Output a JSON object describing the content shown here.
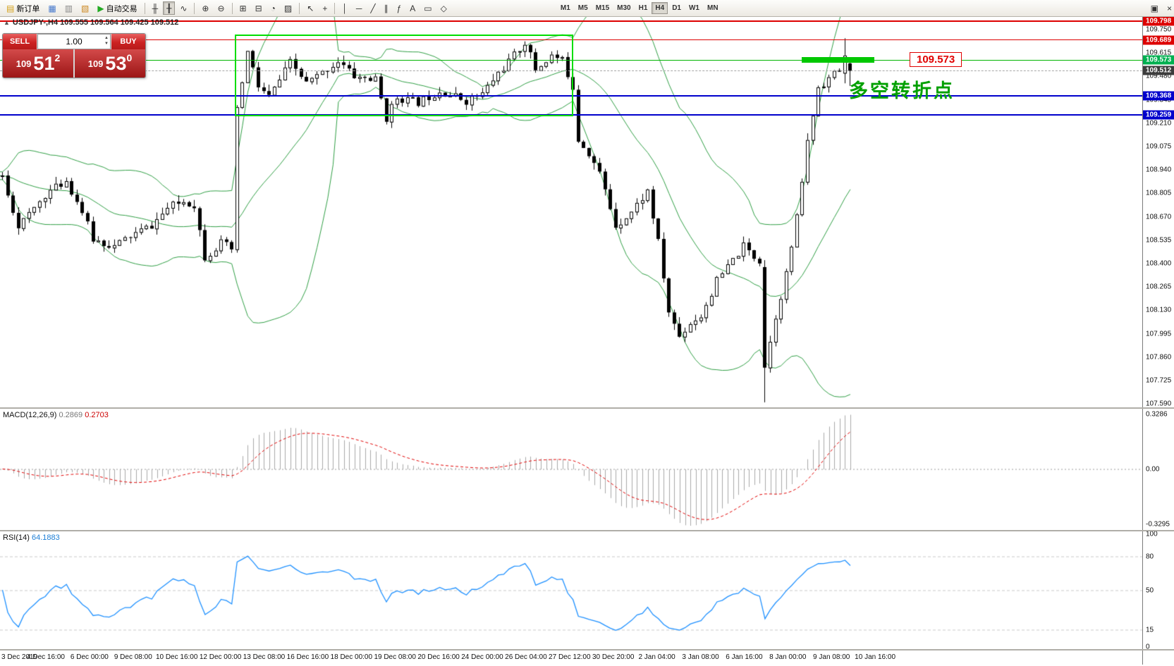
{
  "colors": {
    "band_green": "#2f9e44",
    "hline_red": "#dd0000",
    "hline_blue": "#0000cc",
    "hline_green": "#00b400",
    "current_price_tag": "#3c3c3c",
    "macd_histogram": "#a8a8a8",
    "macd_signal": "#e00000",
    "rsi_line": "#1e90ff",
    "annotation_green": "#00a000",
    "sell_buy_red": "#b81b1b"
  },
  "toolbar": {
    "new_order": "新订单",
    "autotrading": "自动交易",
    "timeframes": [
      "M1",
      "M5",
      "M15",
      "M30",
      "H1",
      "H4",
      "D1",
      "W1",
      "MN"
    ],
    "active_timeframe": "H4",
    "items": [
      {
        "type": "button",
        "name": "new-order-button",
        "icon": "new-order-icon",
        "glyph": "▤",
        "accent": "#d4a017",
        "label_key": "new_order"
      },
      {
        "type": "button",
        "name": "market-watch-button",
        "icon": "market-watch-icon",
        "glyph": "▦",
        "accent": "#4477cc"
      },
      {
        "type": "button",
        "name": "data-window-button",
        "icon": "data-window-icon",
        "glyph": "▥",
        "accent": "#888888"
      },
      {
        "type": "button",
        "name": "navigator-button",
        "icon": "navigator-icon",
        "glyph": "▧",
        "accent": "#cc8822"
      },
      {
        "type": "button",
        "name": "autotrading-button",
        "icon": "autotrading-icon",
        "glyph": "▶",
        "accent": "#22aa22",
        "label_key": "autotrading"
      },
      {
        "type": "sep"
      },
      {
        "type": "button",
        "name": "bar-chart-button",
        "icon": "bar-chart-icon",
        "glyph": "╫"
      },
      {
        "type": "button",
        "name": "candlestick-chart-button",
        "icon": "candlestick-icon",
        "glyph": "╂",
        "active": true
      },
      {
        "type": "button",
        "name": "line-chart-button",
        "icon": "line-chart-icon",
        "glyph": "∿"
      },
      {
        "type": "sep"
      },
      {
        "type": "button",
        "name": "zoom-in-button",
        "icon": "zoom-in-icon",
        "glyph": "⊕"
      },
      {
        "type": "button",
        "name": "zoom-out-button",
        "icon": "zoom-out-icon",
        "glyph": "⊖"
      },
      {
        "type": "sep"
      },
      {
        "type": "button",
        "name": "new-chart-button",
        "icon": "new-chart-icon",
        "glyph": "⊞"
      },
      {
        "type": "button",
        "name": "tile-windows-button",
        "icon": "tile-windows-icon",
        "glyph": "⊟"
      },
      {
        "type": "button",
        "name": "period-dropdown-button",
        "icon": "clock-icon",
        "glyph": "◔"
      },
      {
        "type": "button",
        "name": "templates-button",
        "icon": "template-icon",
        "glyph": "▨"
      },
      {
        "type": "sep"
      },
      {
        "type": "button",
        "name": "cursor-button",
        "icon": "cursor-icon",
        "glyph": "↖"
      },
      {
        "type": "button",
        "name": "crosshair-button",
        "icon": "crosshair-icon",
        "glyph": "+"
      },
      {
        "type": "sep"
      },
      {
        "type": "button",
        "name": "vertical-line-button",
        "icon": "vertical-line-icon",
        "glyph": "│"
      },
      {
        "type": "button",
        "name": "horizontal-line-button",
        "icon": "horizontal-line-icon",
        "glyph": "─"
      },
      {
        "type": "button",
        "name": "trendline-button",
        "icon": "trendline-icon",
        "glyph": "╱"
      },
      {
        "type": "button",
        "name": "channel-button",
        "icon": "channel-icon",
        "glyph": "∥"
      },
      {
        "type": "button",
        "name": "fibonacci-button",
        "icon": "fibonacci-icon",
        "glyph": "ƒ"
      },
      {
        "type": "button",
        "name": "text-button",
        "icon": "text-icon",
        "glyph": "A"
      },
      {
        "type": "button",
        "name": "arrow-label-button",
        "icon": "label-icon",
        "glyph": "▭"
      },
      {
        "type": "button",
        "name": "shapes-button",
        "icon": "shapes-icon",
        "glyph": "◇"
      },
      {
        "type": "gap"
      },
      {
        "type": "timeframes"
      },
      {
        "type": "spacer"
      },
      {
        "type": "button",
        "name": "window-restore-button",
        "icon": "window-restore-icon",
        "glyph": "▣"
      },
      {
        "type": "button",
        "name": "window-close-button",
        "icon": "close-icon",
        "glyph": "×"
      }
    ]
  },
  "chart": {
    "title": "USDJPY-,H4 109.555 109.564 109.425 109.512",
    "symbol": "USDJPY-",
    "period": "H4"
  },
  "one_click": {
    "sell_label": "SELL",
    "buy_label": "BUY",
    "volume": "1.00",
    "spin_up": "▲",
    "spin_down": "▼",
    "sell_price": {
      "prefix": "109",
      "big": "51",
      "sup": "2"
    },
    "buy_price": {
      "prefix": "109",
      "big": "53",
      "sup": "0"
    }
  },
  "annotations": {
    "price_label": "109.573",
    "cn_note": "多空转折点"
  },
  "hlines": [
    {
      "price": 109.798,
      "color": "#dd0000",
      "width": 2,
      "style": "solid"
    },
    {
      "price": 109.689,
      "color": "#dd0000",
      "width": 1,
      "style": "solid"
    },
    {
      "price": 109.573,
      "color": "#00b400",
      "width": 1,
      "style": "solid"
    },
    {
      "price": 109.512,
      "color": "#a8a8a8",
      "width": 1,
      "style": "dashed"
    },
    {
      "price": 109.368,
      "color": "#0000cc",
      "width": 2,
      "style": "solid"
    },
    {
      "price": 109.259,
      "color": "#0000cc",
      "width": 2,
      "style": "solid"
    }
  ],
  "price_scale": {
    "labels": [
      "109.750",
      "109.615",
      "109.480",
      "109.345",
      "109.210",
      "109.075",
      "108.940",
      "108.805",
      "108.670",
      "108.535",
      "108.400",
      "108.265",
      "108.130",
      "107.995",
      "107.860",
      "107.725",
      "107.590"
    ],
    "tags": [
      {
        "text": "109.798",
        "color": "#dd0000",
        "price": 109.798
      },
      {
        "text": "109.689",
        "color": "#dd0000",
        "price": 109.689
      },
      {
        "text": "109.573",
        "color": "#00b050",
        "price": 109.573
      },
      {
        "text": "109.512",
        "color": "#3c3c3c",
        "price": 109.512
      },
      {
        "text": "109.368",
        "color": "#0000cc",
        "price": 109.368
      },
      {
        "text": "109.259",
        "color": "#0000cc",
        "price": 109.259
      }
    ]
  },
  "macd": {
    "name": "MACD(12,26,9)",
    "value_main": "0.2869",
    "value_signal": "0.2703",
    "scale": [
      "0.3286",
      "0.00",
      "-0.3295"
    ]
  },
  "rsi": {
    "name": "RSI(14)",
    "value": "64.1883",
    "scale": [
      "100",
      "80",
      "50",
      "15",
      "0"
    ]
  },
  "time_axis": [
    "3 Dec 2019",
    "4 Dec 16:00",
    "6 Dec 00:00",
    "9 Dec 08:00",
    "10 Dec 16:00",
    "12 Dec 00:00",
    "13 Dec 08:00",
    "16 Dec 16:00",
    "18 Dec 00:00",
    "19 Dec 08:00",
    "20 Dec 16:00",
    "24 Dec 00:00",
    "26 Dec 04:00",
    "27 Dec 12:00",
    "30 Dec 20:00",
    "2 Jan 04:00",
    "3 Jan 08:00",
    "6 Jan 16:00",
    "8 Jan 00:00",
    "9 Jan 08:00",
    "10 Jan 16:00"
  ],
  "chart_data": {
    "type": "candlestick",
    "symbol": "USDJPY",
    "timeframe": "H4",
    "visible_range": {
      "from": "3 Dec 2019",
      "to": "10 Jan 16:00"
    },
    "price_max": 109.827,
    "price_min": 107.571,
    "candle_count": 160,
    "warmup": 40,
    "spacing": 7.5625,
    "body_width": 5,
    "seed": 11,
    "current_ohlc": {
      "open": 109.555,
      "high": 109.564,
      "low": 109.425,
      "close": 109.512
    },
    "anchors": [
      [
        0,
        108.9
      ],
      [
        3,
        108.62
      ],
      [
        5,
        108.68
      ],
      [
        8,
        108.8
      ],
      [
        12,
        108.88
      ],
      [
        15,
        108.7
      ],
      [
        17,
        108.54
      ],
      [
        21,
        108.5
      ],
      [
        24,
        108.56
      ],
      [
        28,
        108.62
      ],
      [
        31,
        108.72
      ],
      [
        34,
        108.76
      ],
      [
        36,
        108.74
      ],
      [
        38,
        108.44
      ],
      [
        41,
        108.52
      ],
      [
        43,
        108.48
      ],
      [
        44,
        109.28
      ],
      [
        46,
        109.62
      ],
      [
        48,
        109.42
      ],
      [
        50,
        109.36
      ],
      [
        54,
        109.56
      ],
      [
        57,
        109.44
      ],
      [
        60,
        109.5
      ],
      [
        63,
        109.57
      ],
      [
        66,
        109.48
      ],
      [
        70,
        109.46
      ],
      [
        72,
        109.24
      ],
      [
        74,
        109.36
      ],
      [
        78,
        109.33
      ],
      [
        82,
        109.4
      ],
      [
        87,
        109.34
      ],
      [
        90,
        109.38
      ],
      [
        93,
        109.5
      ],
      [
        96,
        109.6
      ],
      [
        98,
        109.68
      ],
      [
        100,
        109.52
      ],
      [
        103,
        109.6
      ],
      [
        105,
        109.57
      ],
      [
        107,
        109.42
      ],
      [
        108,
        109.12
      ],
      [
        110,
        109.04
      ],
      [
        112,
        108.92
      ],
      [
        115,
        108.62
      ],
      [
        118,
        108.7
      ],
      [
        121,
        108.82
      ],
      [
        123,
        108.52
      ],
      [
        125,
        108.12
      ],
      [
        127,
        107.98
      ],
      [
        129,
        108.06
      ],
      [
        131,
        108.1
      ],
      [
        134,
        108.3
      ],
      [
        137,
        108.42
      ],
      [
        139,
        108.5
      ],
      [
        141,
        108.44
      ],
      [
        142,
        108.42
      ],
      [
        143,
        107.8
      ],
      [
        145,
        108.1
      ],
      [
        147,
        108.34
      ],
      [
        149,
        108.66
      ],
      [
        151,
        109.1
      ],
      [
        153,
        109.42
      ],
      [
        155,
        109.47
      ],
      [
        157,
        109.52
      ],
      [
        158,
        109.58
      ],
      [
        159,
        109.512
      ]
    ],
    "overrides": {
      "143": {
        "o": 108.38,
        "h": 108.42,
        "l": 107.6,
        "c": 107.8
      },
      "158": {
        "o": 109.5,
        "h": 109.7,
        "l": 109.44,
        "c": 109.6
      },
      "159": {
        "o": 109.555,
        "h": 109.564,
        "l": 109.425,
        "c": 109.512
      }
    },
    "bollinger": {
      "period": 20,
      "deviation": 2,
      "color": "#2f9e44"
    },
    "macd": {
      "fast": 12,
      "slow": 26,
      "signal": 9,
      "current_main": 0.2869,
      "current_signal": 0.2703,
      "scale_max": 0.3286,
      "scale_min": -0.3295,
      "histogram_color": "#a8a8a8",
      "signal_color": "#e00000"
    },
    "rsi": {
      "period": 14,
      "current": 64.1883,
      "color": "#1e90ff",
      "levels": [
        80,
        50,
        15
      ]
    },
    "rectangle": {
      "i0": 44,
      "i1": 107,
      "price_top": 109.72,
      "price_bottom": 109.265,
      "color": "#00dd00"
    },
    "highlight_segment": {
      "i0": 150.3,
      "i1": 164,
      "price": 109.573,
      "thickness": 8,
      "color": "#00c800"
    }
  }
}
